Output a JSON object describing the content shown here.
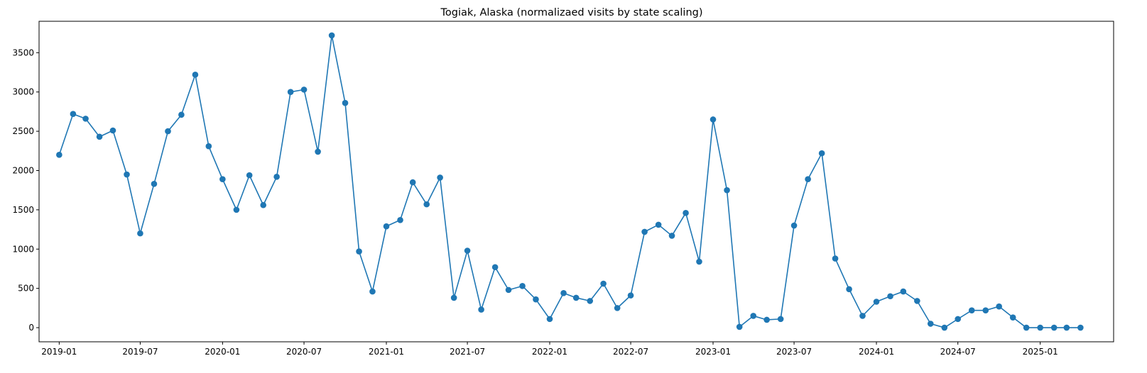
{
  "chart_data": {
    "type": "line",
    "title": "Togiak, Alaska (normalizaed visits by state scaling)",
    "xlabel": "",
    "ylabel": "",
    "markers": true,
    "grid": false,
    "color": "#1f77b4",
    "x_tick_labels": [
      "2019-01",
      "2019-07",
      "2020-01",
      "2020-07",
      "2021-01",
      "2021-07",
      "2022-01",
      "2022-07",
      "2023-01",
      "2023-07",
      "2024-01",
      "2024-07",
      "2025-01"
    ],
    "y_tick_labels": [
      "0",
      "500",
      "1000",
      "1500",
      "2000",
      "2500",
      "3000",
      "3500"
    ],
    "ylim": [
      -180,
      3900
    ],
    "xlim": [
      "2018-11-17",
      "2025-06-14"
    ],
    "series": [
      {
        "x": [
          "2019-01",
          "2019-02",
          "2019-03",
          "2019-04",
          "2019-05",
          "2019-06",
          "2019-07",
          "2019-08",
          "2019-09",
          "2019-10",
          "2019-11",
          "2019-12",
          "2020-01",
          "2020-02",
          "2020-03",
          "2020-04",
          "2020-05",
          "2020-06",
          "2020-07",
          "2020-08",
          "2020-09",
          "2020-10",
          "2020-11",
          "2020-12",
          "2021-01",
          "2021-02",
          "2021-03",
          "2021-04",
          "2021-05",
          "2021-06",
          "2021-07",
          "2021-08",
          "2021-09",
          "2021-10",
          "2021-11",
          "2021-12",
          "2022-01",
          "2022-02",
          "2022-03",
          "2022-04",
          "2022-05",
          "2022-06",
          "2022-07",
          "2022-08",
          "2022-09",
          "2022-10",
          "2022-11",
          "2022-12",
          "2023-01",
          "2023-02",
          "2023-03",
          "2023-04",
          "2023-05",
          "2023-06",
          "2023-07",
          "2023-08",
          "2023-09",
          "2023-10",
          "2023-11",
          "2023-12",
          "2024-01",
          "2024-02",
          "2024-03",
          "2024-04",
          "2024-05",
          "2024-06",
          "2024-07",
          "2024-08",
          "2024-09",
          "2024-10",
          "2024-11",
          "2024-12",
          "2025-01",
          "2025-02",
          "2025-03",
          "2025-04"
        ],
        "y": [
          2200,
          2720,
          2660,
          2430,
          2510,
          1950,
          1200,
          1830,
          2500,
          2710,
          3220,
          2310,
          1890,
          1500,
          1940,
          1560,
          1920,
          3000,
          3030,
          2240,
          3720,
          2860,
          970,
          460,
          1290,
          1370,
          1850,
          1570,
          1910,
          380,
          980,
          230,
          770,
          480,
          530,
          360,
          110,
          440,
          380,
          340,
          560,
          250,
          410,
          1220,
          1310,
          1170,
          1460,
          840,
          2650,
          1750,
          10,
          150,
          100,
          110,
          1300,
          1890,
          2220,
          880,
          490,
          150,
          330,
          400,
          460,
          340,
          50,
          0,
          110,
          220,
          220,
          270,
          130,
          0,
          0,
          0,
          0,
          0
        ]
      }
    ]
  }
}
